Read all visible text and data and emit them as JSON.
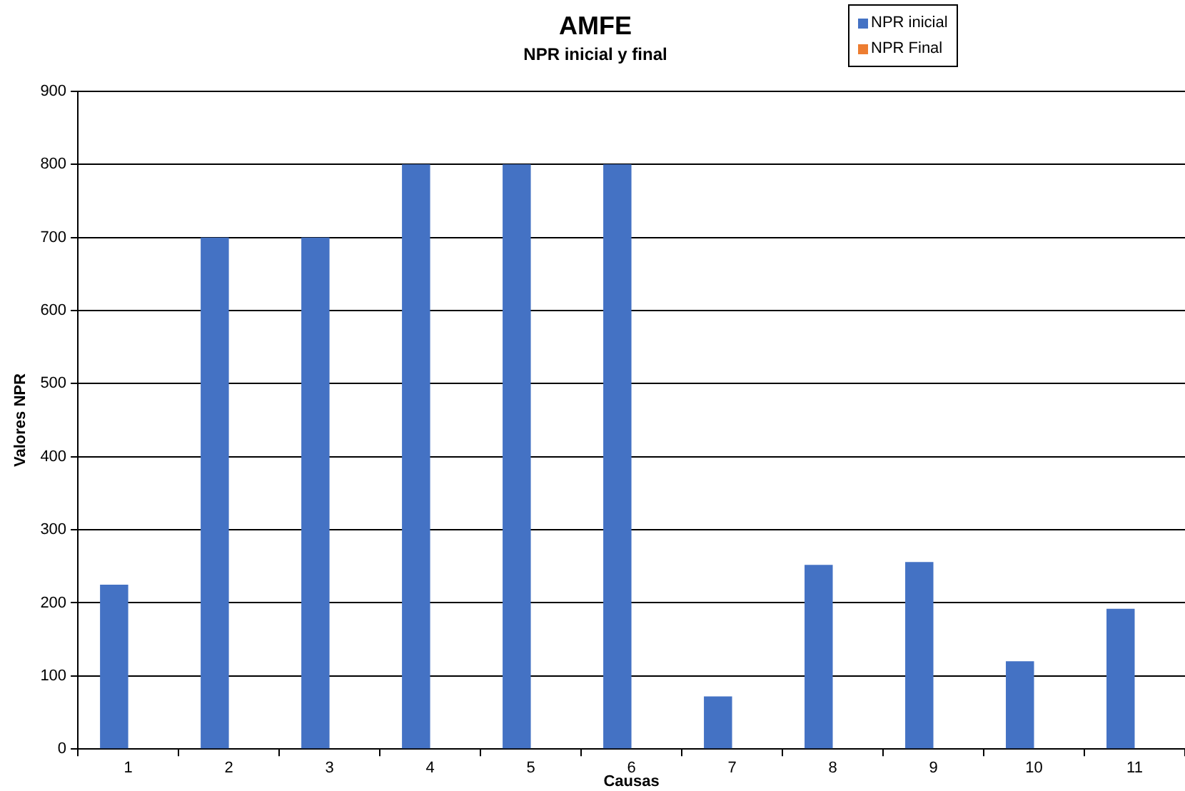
{
  "chart_data": {
    "type": "bar",
    "title": "AMFE",
    "subtitle": "NPR inicial y final",
    "xlabel": "Causas",
    "ylabel": "Valores NPR",
    "categories": [
      "1",
      "2",
      "3",
      "4",
      "5",
      "6",
      "7",
      "8",
      "9",
      "10",
      "11"
    ],
    "series": [
      {
        "name": "NPR inicial",
        "color": "#4472c4",
        "values": [
          225,
          700,
          700,
          800,
          800,
          800,
          72,
          252,
          256,
          120,
          192
        ]
      },
      {
        "name": "NPR Final",
        "color": "#ed7d31",
        "values": [
          null,
          null,
          null,
          null,
          null,
          null,
          null,
          null,
          null,
          null,
          null
        ]
      }
    ],
    "ylim": [
      0,
      900
    ],
    "yticks": [
      0,
      100,
      200,
      300,
      400,
      500,
      600,
      700,
      800,
      900
    ],
    "grid": "y",
    "legend": "top right"
  }
}
